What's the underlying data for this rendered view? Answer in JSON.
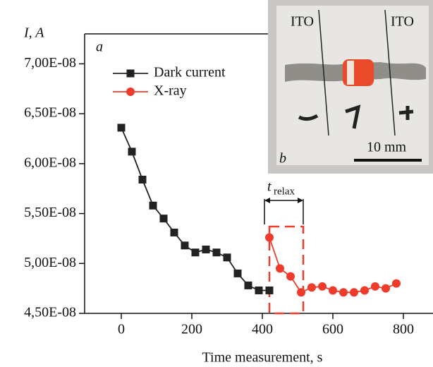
{
  "chart_data": {
    "type": "line",
    "panel_label": "a",
    "ylabel": "I, A",
    "xlabel": "Time measurement, s",
    "xlim": [
      -104,
      884
    ],
    "xticks": [
      0,
      200,
      400,
      600,
      800
    ],
    "ylim": [
      4.5e-08,
      7.3e-08
    ],
    "yticks": [
      {
        "value": 4.5e-08,
        "label": "4,50E-08"
      },
      {
        "value": 5e-08,
        "label": "5,00E-08"
      },
      {
        "value": 5.5e-08,
        "label": "5,50E-08"
      },
      {
        "value": 6e-08,
        "label": "6,00E-08"
      },
      {
        "value": 6.5e-08,
        "label": "6,50E-08"
      },
      {
        "value": 7e-08,
        "label": "7,00E-08"
      }
    ],
    "legend": "upper left",
    "series": [
      {
        "name": "Dark current",
        "color": "#222222",
        "marker": "square",
        "x": [
          0,
          30,
          60,
          90,
          120,
          150,
          180,
          210,
          240,
          270,
          300,
          330,
          360,
          390,
          420
        ],
        "values": [
          6.36e-08,
          6.12e-08,
          5.84e-08,
          5.58e-08,
          5.45e-08,
          5.31e-08,
          5.18e-08,
          5.11e-08,
          5.14e-08,
          5.11e-08,
          5.06e-08,
          4.9e-08,
          4.78e-08,
          4.73e-08,
          4.73e-08
        ]
      },
      {
        "name": "X-ray",
        "color": "#ee3b2b",
        "marker": "circle",
        "x": [
          420,
          450,
          480,
          510,
          540,
          570,
          600,
          630,
          660,
          690,
          720,
          750,
          780
        ],
        "values": [
          5.26e-08,
          4.95e-08,
          4.87e-08,
          4.71e-08,
          4.76e-08,
          4.77e-08,
          4.73e-08,
          4.71e-08,
          4.71e-08,
          4.73e-08,
          4.77e-08,
          4.75e-08,
          4.8e-08
        ]
      }
    ],
    "annotation": {
      "symbol": "t",
      "subscript": "relax"
    },
    "inset": {
      "label_left": "ITO",
      "label_right": "ITO",
      "scale_bar": "10 mm",
      "panel_label": "b"
    }
  }
}
